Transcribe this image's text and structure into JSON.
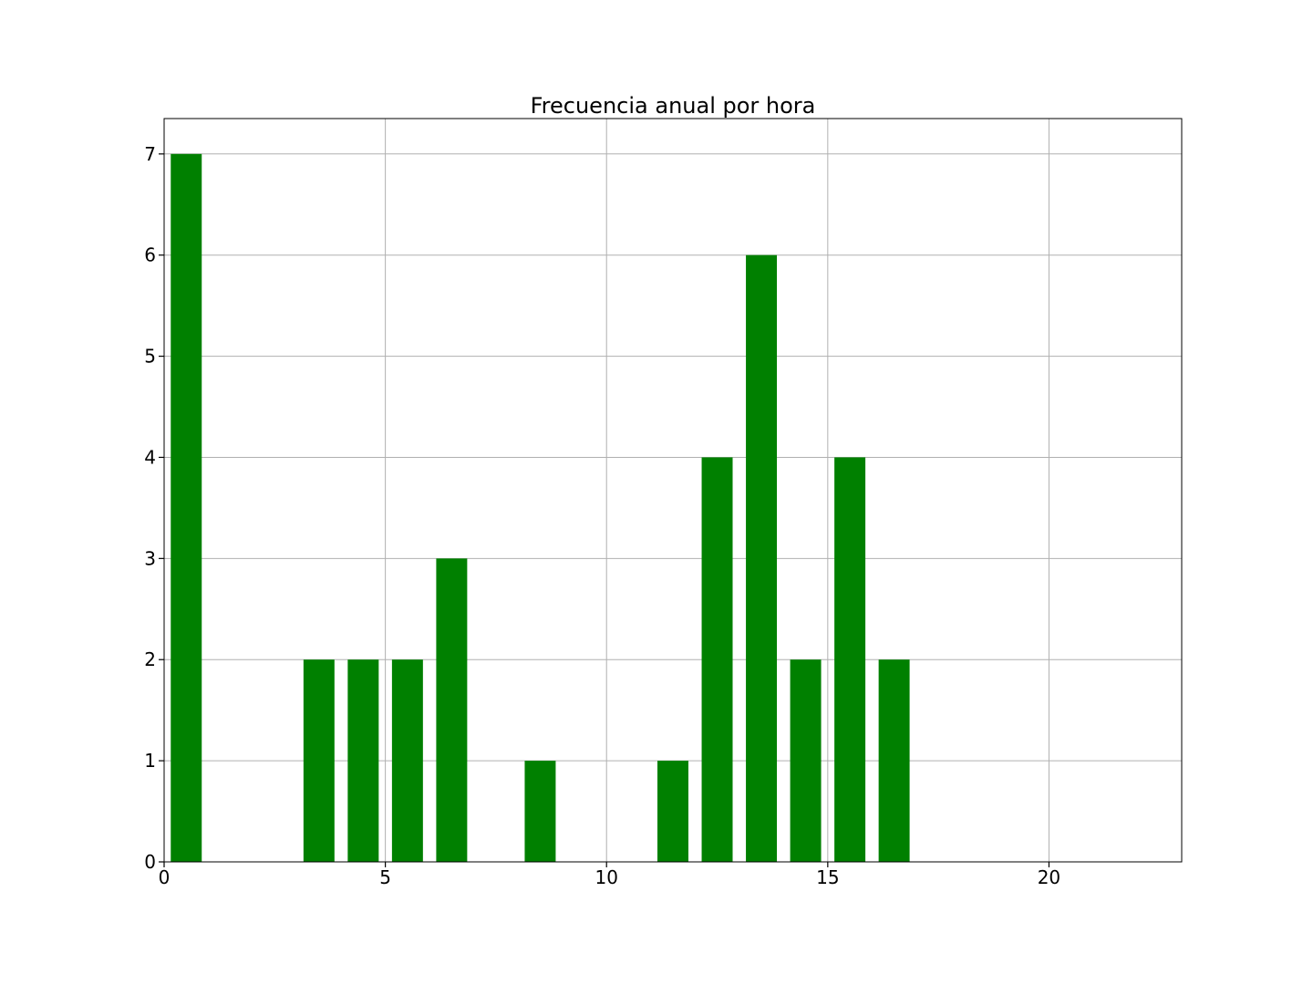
{
  "chart_data": {
    "type": "bar",
    "title": "Frecuencia anual por hora",
    "xlabel": "",
    "ylabel": "",
    "bins": [
      {
        "x0": 0.15,
        "x1": 0.85,
        "value": 7
      },
      {
        "x0": 3.15,
        "x1": 3.85,
        "value": 2
      },
      {
        "x0": 4.15,
        "x1": 4.85,
        "value": 2
      },
      {
        "x0": 5.15,
        "x1": 5.85,
        "value": 2
      },
      {
        "x0": 6.15,
        "x1": 6.85,
        "value": 3
      },
      {
        "x0": 8.15,
        "x1": 8.85,
        "value": 1
      },
      {
        "x0": 11.15,
        "x1": 11.85,
        "value": 1
      },
      {
        "x0": 12.15,
        "x1": 12.85,
        "value": 4
      },
      {
        "x0": 13.15,
        "x1": 13.85,
        "value": 6
      },
      {
        "x0": 14.15,
        "x1": 14.85,
        "value": 2
      },
      {
        "x0": 15.15,
        "x1": 15.85,
        "value": 4
      },
      {
        "x0": 16.15,
        "x1": 16.85,
        "value": 2
      }
    ],
    "xlim": [
      0,
      23
    ],
    "ylim": [
      0,
      7.35
    ],
    "xticks": [
      0,
      5,
      10,
      15,
      20
    ],
    "yticks": [
      0,
      1,
      2,
      3,
      4,
      5,
      6,
      7
    ],
    "grid": true,
    "bar_color": "#008000",
    "grid_color": "#b0b0b0"
  }
}
